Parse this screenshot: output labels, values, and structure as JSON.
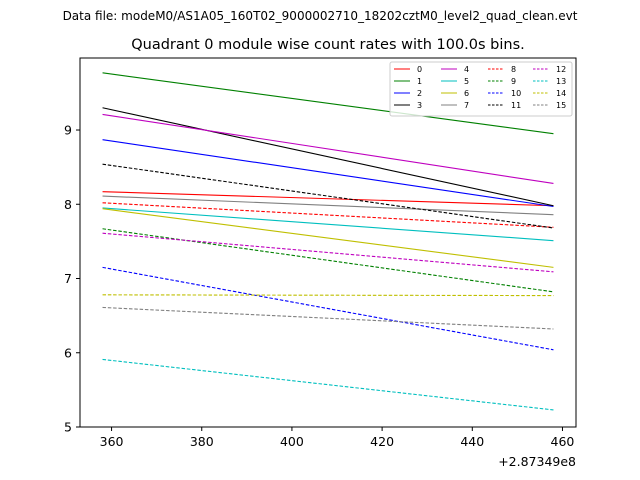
{
  "chart_data": {
    "type": "line",
    "suptitle": "Data file: modeM0/AS1A05_160T02_9000002710_18202cztM0_level2_quad_clean.evt",
    "title": "Quadrant 0 module wise count rates with 100.0s bins.",
    "xlabel": "",
    "ylabel": "",
    "offset_label": "+2.87349e8",
    "xlim": [
      353,
      463
    ],
    "ylim": [
      5,
      9.97
    ],
    "xticks": [
      360,
      380,
      400,
      420,
      440,
      460
    ],
    "yticks": [
      5,
      6,
      7,
      8,
      9
    ],
    "legend_position": "top-right",
    "series": [
      {
        "name": "0",
        "color": "#ff0000",
        "dash": "solid",
        "x": [
          358,
          458
        ],
        "y": [
          8.17,
          7.98
        ]
      },
      {
        "name": "1",
        "color": "#008000",
        "dash": "solid",
        "x": [
          358,
          458
        ],
        "y": [
          9.77,
          8.95
        ]
      },
      {
        "name": "2",
        "color": "#0000ff",
        "dash": "solid",
        "x": [
          358,
          458
        ],
        "y": [
          8.87,
          7.97
        ]
      },
      {
        "name": "3",
        "color": "#000000",
        "dash": "solid",
        "x": [
          358,
          458
        ],
        "y": [
          9.3,
          7.98
        ]
      },
      {
        "name": "4",
        "color": "#bf00bf",
        "dash": "solid",
        "x": [
          358,
          458
        ],
        "y": [
          9.21,
          8.28
        ]
      },
      {
        "name": "5",
        "color": "#00bfbf",
        "dash": "solid",
        "x": [
          358,
          458
        ],
        "y": [
          7.95,
          7.51
        ]
      },
      {
        "name": "6",
        "color": "#bfbf00",
        "dash": "solid",
        "x": [
          358,
          458
        ],
        "y": [
          7.94,
          7.15
        ]
      },
      {
        "name": "7",
        "color": "#808080",
        "dash": "solid",
        "x": [
          358,
          458
        ],
        "y": [
          8.11,
          7.86
        ]
      },
      {
        "name": "8",
        "color": "#ff0000",
        "dash": "dashed",
        "x": [
          358,
          458
        ],
        "y": [
          8.02,
          7.69
        ]
      },
      {
        "name": "9",
        "color": "#008000",
        "dash": "dashed",
        "x": [
          358,
          458
        ],
        "y": [
          7.67,
          6.82
        ]
      },
      {
        "name": "10",
        "color": "#0000ff",
        "dash": "dashed",
        "x": [
          358,
          458
        ],
        "y": [
          7.15,
          6.04
        ]
      },
      {
        "name": "11",
        "color": "#000000",
        "dash": "dashed",
        "x": [
          358,
          458
        ],
        "y": [
          8.54,
          7.68
        ]
      },
      {
        "name": "12",
        "color": "#bf00bf",
        "dash": "dashed",
        "x": [
          358,
          458
        ],
        "y": [
          7.61,
          7.09
        ]
      },
      {
        "name": "13",
        "color": "#00bfbf",
        "dash": "dashed",
        "x": [
          358,
          458
        ],
        "y": [
          5.91,
          5.23
        ]
      },
      {
        "name": "14",
        "color": "#bfbf00",
        "dash": "dashed",
        "x": [
          358,
          458
        ],
        "y": [
          6.78,
          6.77
        ]
      },
      {
        "name": "15",
        "color": "#808080",
        "dash": "dashed",
        "x": [
          358,
          458
        ],
        "y": [
          6.61,
          6.32
        ]
      }
    ]
  }
}
